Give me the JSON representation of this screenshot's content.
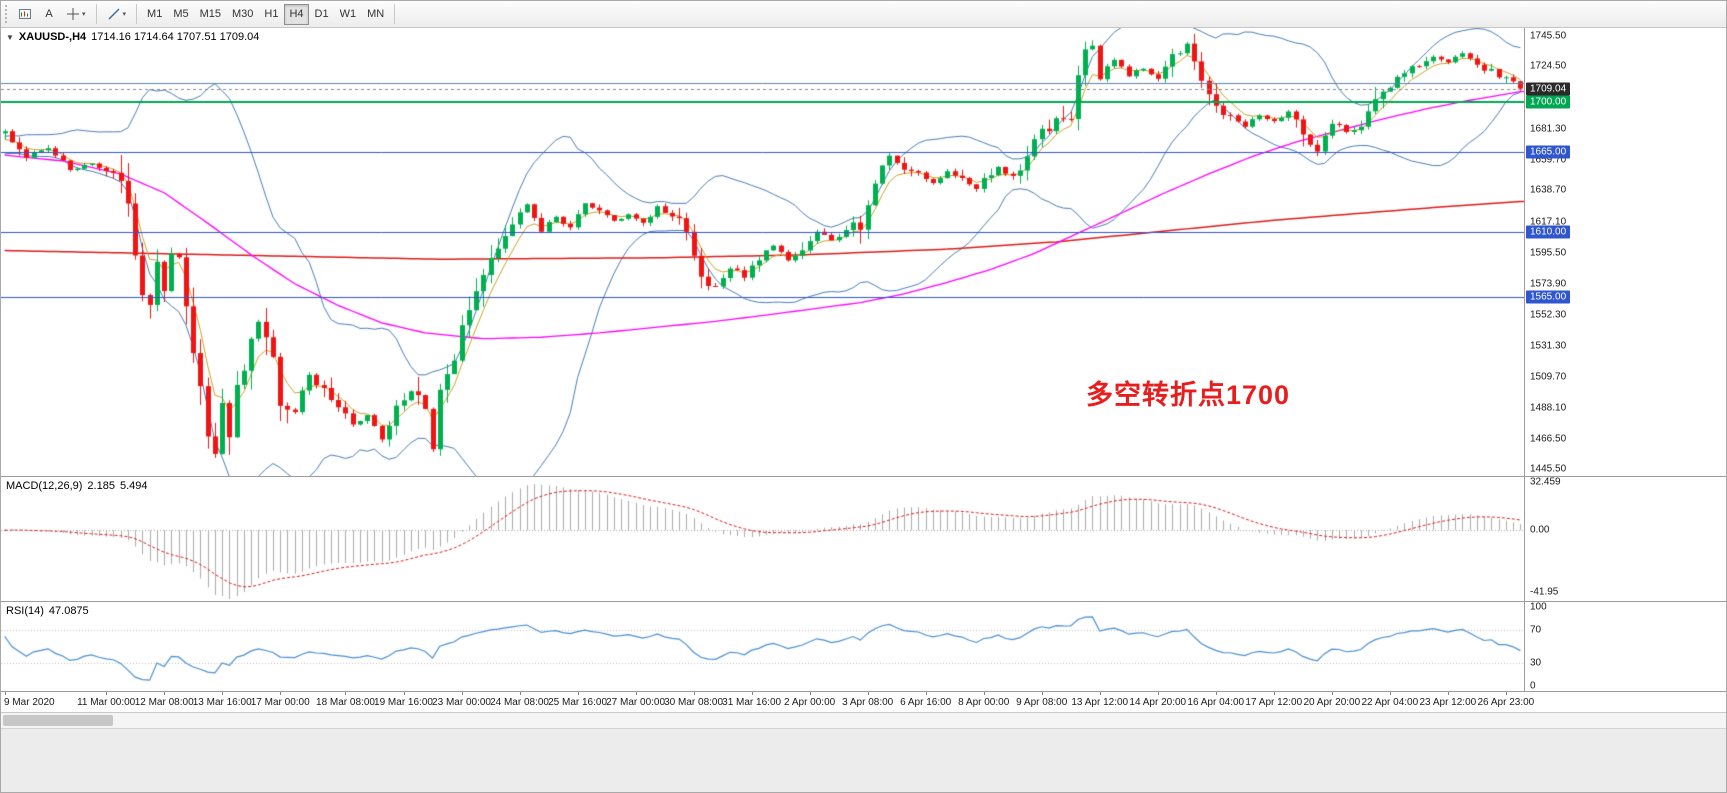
{
  "app": {
    "name": "MetaTrader chart window"
  },
  "toolbar": {
    "text_tool_label": "A",
    "icons": [
      "charts-icon",
      "text-tool",
      "crosshair-icon",
      "line-studies-icon"
    ],
    "timeframes": [
      "M1",
      "M5",
      "M15",
      "M30",
      "H1",
      "H4",
      "D1",
      "W1",
      "MN"
    ],
    "active_timeframe": "H4"
  },
  "chart": {
    "symbol": "XAUUSD-,H4",
    "ohlc_text": "1714.16 1714.64 1707.51 1709.04"
  },
  "annotation": {
    "text": "多空转折点1700",
    "color": "#e81e1e"
  },
  "price_axis": {
    "ticks": [
      "1745.50",
      "1724.50",
      "1681.30",
      "1659.70",
      "1638.70",
      "1617.10",
      "1595.50",
      "1573.90",
      "1552.30",
      "1531.30",
      "1509.70",
      "1488.10",
      "1466.50",
      "1445.50"
    ],
    "badges": [
      {
        "label": "1709.04",
        "price": 1709.04,
        "bg": "#2a2a2a",
        "name": "current-price-badge"
      },
      {
        "label": "1700.00",
        "price": 1700.0,
        "bg": "#00a651",
        "name": "level-badge-1700"
      },
      {
        "label": "1665.00",
        "price": 1665.0,
        "bg": "#2f55cf",
        "name": "level-badge-1665"
      },
      {
        "label": "1610.00",
        "price": 1610.0,
        "bg": "#2f55cf",
        "name": "level-badge-1610"
      },
      {
        "label": "1565.00",
        "price": 1565.0,
        "bg": "#2f55cf",
        "name": "level-badge-1565"
      }
    ]
  },
  "macd_panel": {
    "label": "MACD(12,26,9)",
    "main_value": "2.185",
    "signal_value": "5.494",
    "axis": [
      {
        "label": "32.459",
        "value": 32.459
      },
      {
        "label": "0.00",
        "value": 0
      },
      {
        "label": "-41.95",
        "value": -41.95
      }
    ]
  },
  "rsi_panel": {
    "label": "RSI(14)",
    "value": "47.0875",
    "axis": [
      {
        "label": "100",
        "value": 100
      },
      {
        "label": "70",
        "value": 70
      },
      {
        "label": "30",
        "value": 30
      },
      {
        "label": "0",
        "value": 0
      }
    ]
  },
  "time_axis": [
    {
      "text": "9 Mar 2020",
      "idx": 0
    },
    {
      "text": "11 Mar 00:00",
      "idx": 14
    },
    {
      "text": "12 Mar 08:00",
      "idx": 22
    },
    {
      "text": "13 Mar 16:00",
      "idx": 30
    },
    {
      "text": "17 Mar 00:00",
      "idx": 38
    },
    {
      "text": "18 Mar 08:00",
      "idx": 47
    },
    {
      "text": "19 Mar 16:00",
      "idx": 55
    },
    {
      "text": "23 Mar 00:00",
      "idx": 63
    },
    {
      "text": "24 Mar 08:00",
      "idx": 71
    },
    {
      "text": "25 Mar 16:00",
      "idx": 79
    },
    {
      "text": "27 Mar 00:00",
      "idx": 87
    },
    {
      "text": "30 Mar 08:00",
      "idx": 95
    },
    {
      "text": "31 Mar 16:00",
      "idx": 103
    },
    {
      "text": "2 Apr 00:00",
      "idx": 111
    },
    {
      "text": "3 Apr 08:00",
      "idx": 119
    },
    {
      "text": "6 Apr 16:00",
      "idx": 127
    },
    {
      "text": "8 Apr 00:00",
      "idx": 135
    },
    {
      "text": "9 Apr 08:00",
      "idx": 143
    },
    {
      "text": "13 Apr 12:00",
      "idx": 151
    },
    {
      "text": "14 Apr 20:00",
      "idx": 159
    },
    {
      "text": "16 Apr 04:00",
      "idx": 167
    },
    {
      "text": "17 Apr 12:00",
      "idx": 175
    },
    {
      "text": "20 Apr 20:00",
      "idx": 183
    },
    {
      "text": "22 Apr 04:00",
      "idx": 191
    },
    {
      "text": "23 Apr 12:00",
      "idx": 199
    },
    {
      "text": "26 Apr 23:00",
      "idx": 207
    }
  ],
  "chart_data": {
    "type": "candlestick",
    "symbol": "XAUUSD",
    "timeframe": "H4",
    "title": "XAUUSD-,H4 1714.16 1714.64 1707.51 1709.04",
    "price_range": {
      "min": 1441.0,
      "max": 1751.0
    },
    "candle_count": 210,
    "last_candle": {
      "open": 1714.16,
      "high": 1714.64,
      "low": 1707.51,
      "close": 1709.04
    },
    "close_anchors": [
      [
        0,
        1678
      ],
      [
        3,
        1662
      ],
      [
        6,
        1669
      ],
      [
        9,
        1652
      ],
      [
        12,
        1658
      ],
      [
        14,
        1650
      ],
      [
        16,
        1649
      ],
      [
        17,
        1634
      ],
      [
        18,
        1598
      ],
      [
        19,
        1572
      ],
      [
        20,
        1562
      ],
      [
        21,
        1586
      ],
      [
        22,
        1572
      ],
      [
        23,
        1592
      ],
      [
        24,
        1585
      ],
      [
        25,
        1558
      ],
      [
        26,
        1532
      ],
      [
        27,
        1500
      ],
      [
        28,
        1472
      ],
      [
        29,
        1456
      ],
      [
        30,
        1490
      ],
      [
        31,
        1472
      ],
      [
        32,
        1506
      ],
      [
        33,
        1520
      ],
      [
        34,
        1536
      ],
      [
        35,
        1550
      ],
      [
        36,
        1543
      ],
      [
        37,
        1522
      ],
      [
        38,
        1497
      ],
      [
        40,
        1487
      ],
      [
        42,
        1510
      ],
      [
        44,
        1500
      ],
      [
        46,
        1488
      ],
      [
        48,
        1476
      ],
      [
        50,
        1482
      ],
      [
        52,
        1468
      ],
      [
        54,
        1490
      ],
      [
        56,
        1499
      ],
      [
        58,
        1488
      ],
      [
        59,
        1462
      ],
      [
        60,
        1500
      ],
      [
        61,
        1512
      ],
      [
        62,
        1524
      ],
      [
        64,
        1556
      ],
      [
        66,
        1580
      ],
      [
        68,
        1601
      ],
      [
        70,
        1614
      ],
      [
        72,
        1629
      ],
      [
        74,
        1611
      ],
      [
        76,
        1621
      ],
      [
        78,
        1612
      ],
      [
        80,
        1629
      ],
      [
        82,
        1624
      ],
      [
        84,
        1617
      ],
      [
        86,
        1622
      ],
      [
        88,
        1616
      ],
      [
        90,
        1627
      ],
      [
        92,
        1620
      ],
      [
        94,
        1612
      ],
      [
        96,
        1580
      ],
      [
        98,
        1571
      ],
      [
        100,
        1586
      ],
      [
        102,
        1578
      ],
      [
        104,
        1591
      ],
      [
        106,
        1601
      ],
      [
        108,
        1591
      ],
      [
        110,
        1598
      ],
      [
        112,
        1609
      ],
      [
        114,
        1605
      ],
      [
        116,
        1611
      ],
      [
        118,
        1615
      ],
      [
        120,
        1645
      ],
      [
        122,
        1661
      ],
      [
        124,
        1655
      ],
      [
        126,
        1650
      ],
      [
        128,
        1643
      ],
      [
        130,
        1651
      ],
      [
        132,
        1645
      ],
      [
        134,
        1639
      ],
      [
        135,
        1646
      ],
      [
        137,
        1654
      ],
      [
        139,
        1649
      ],
      [
        141,
        1661
      ],
      [
        143,
        1679
      ],
      [
        145,
        1686
      ],
      [
        147,
        1692
      ],
      [
        149,
        1733
      ],
      [
        150,
        1738
      ],
      [
        151,
        1716
      ],
      [
        153,
        1730
      ],
      [
        155,
        1719
      ],
      [
        157,
        1723
      ],
      [
        159,
        1716
      ],
      [
        161,
        1729
      ],
      [
        163,
        1739
      ],
      [
        165,
        1711
      ],
      [
        167,
        1696
      ],
      [
        169,
        1689
      ],
      [
        171,
        1683
      ],
      [
        173,
        1691
      ],
      [
        175,
        1686
      ],
      [
        177,
        1693
      ],
      [
        179,
        1679
      ],
      [
        181,
        1665
      ],
      [
        183,
        1687
      ],
      [
        185,
        1679
      ],
      [
        187,
        1686
      ],
      [
        189,
        1701
      ],
      [
        191,
        1712
      ],
      [
        193,
        1719
      ],
      [
        195,
        1726
      ],
      [
        197,
        1731
      ],
      [
        199,
        1728
      ],
      [
        201,
        1733
      ],
      [
        203,
        1725
      ],
      [
        205,
        1721
      ],
      [
        207,
        1715
      ],
      [
        209,
        1710
      ]
    ],
    "horizontal_lines": [
      {
        "price": 1713.2,
        "color": "#5b84ad",
        "width": 1
      },
      {
        "price": 1700.0,
        "color": "#00a651",
        "width": 2
      },
      {
        "price": 1665.0,
        "color": "#2f55cf",
        "width": 1
      },
      {
        "price": 1610.0,
        "color": "#2f55cf",
        "width": 1
      },
      {
        "price": 1565.0,
        "color": "#2f55cf",
        "width": 1
      }
    ],
    "current_price": 1709.04,
    "candle_colors": {
      "up": "#00b050",
      "down": "#f01414"
    },
    "indicators": {
      "bollinger": {
        "period": 20,
        "deviation": 2,
        "color": "#4a7bb5"
      },
      "fast_ma": {
        "period": 5,
        "color": "#c9a227"
      },
      "mid_ma_color": "#ff00ff",
      "mid_ma_anchors": [
        [
          0,
          1663
        ],
        [
          8,
          1659
        ],
        [
          16,
          1650
        ],
        [
          22,
          1637
        ],
        [
          28,
          1616
        ],
        [
          34,
          1594
        ],
        [
          40,
          1574
        ],
        [
          46,
          1559
        ],
        [
          52,
          1547
        ],
        [
          58,
          1540
        ],
        [
          66,
          1536
        ],
        [
          74,
          1537
        ],
        [
          82,
          1540
        ],
        [
          90,
          1544
        ],
        [
          98,
          1548
        ],
        [
          106,
          1553
        ],
        [
          112,
          1557
        ],
        [
          118,
          1561
        ],
        [
          124,
          1567
        ],
        [
          130,
          1575
        ],
        [
          136,
          1584
        ],
        [
          142,
          1595
        ],
        [
          148,
          1609
        ],
        [
          154,
          1623
        ],
        [
          160,
          1637
        ],
        [
          166,
          1650
        ],
        [
          172,
          1662
        ],
        [
          178,
          1672
        ],
        [
          184,
          1680
        ],
        [
          190,
          1688
        ],
        [
          196,
          1695
        ],
        [
          202,
          1701
        ],
        [
          209,
          1707
        ]
      ],
      "slow_ma_color": "#d91c1c",
      "slow_ma_anchors": [
        [
          0,
          1597
        ],
        [
          30,
          1594
        ],
        [
          60,
          1591
        ],
        [
          90,
          1592
        ],
        [
          110,
          1594
        ],
        [
          130,
          1598
        ],
        [
          145,
          1603
        ],
        [
          155,
          1608
        ],
        [
          165,
          1613
        ],
        [
          175,
          1618
        ],
        [
          185,
          1622
        ],
        [
          195,
          1626
        ],
        [
          209,
          1631
        ]
      ],
      "macd": {
        "fast": 12,
        "slow": 26,
        "signal": 9,
        "histogram_color": "#ababab",
        "signal_color": "#d91c1c",
        "range": {
          "min": -48,
          "max": 36
        }
      },
      "rsi": {
        "period": 14,
        "color": "#4a8fd2",
        "levels": [
          70,
          30
        ],
        "range": {
          "min": -5,
          "max": 105
        }
      }
    }
  }
}
